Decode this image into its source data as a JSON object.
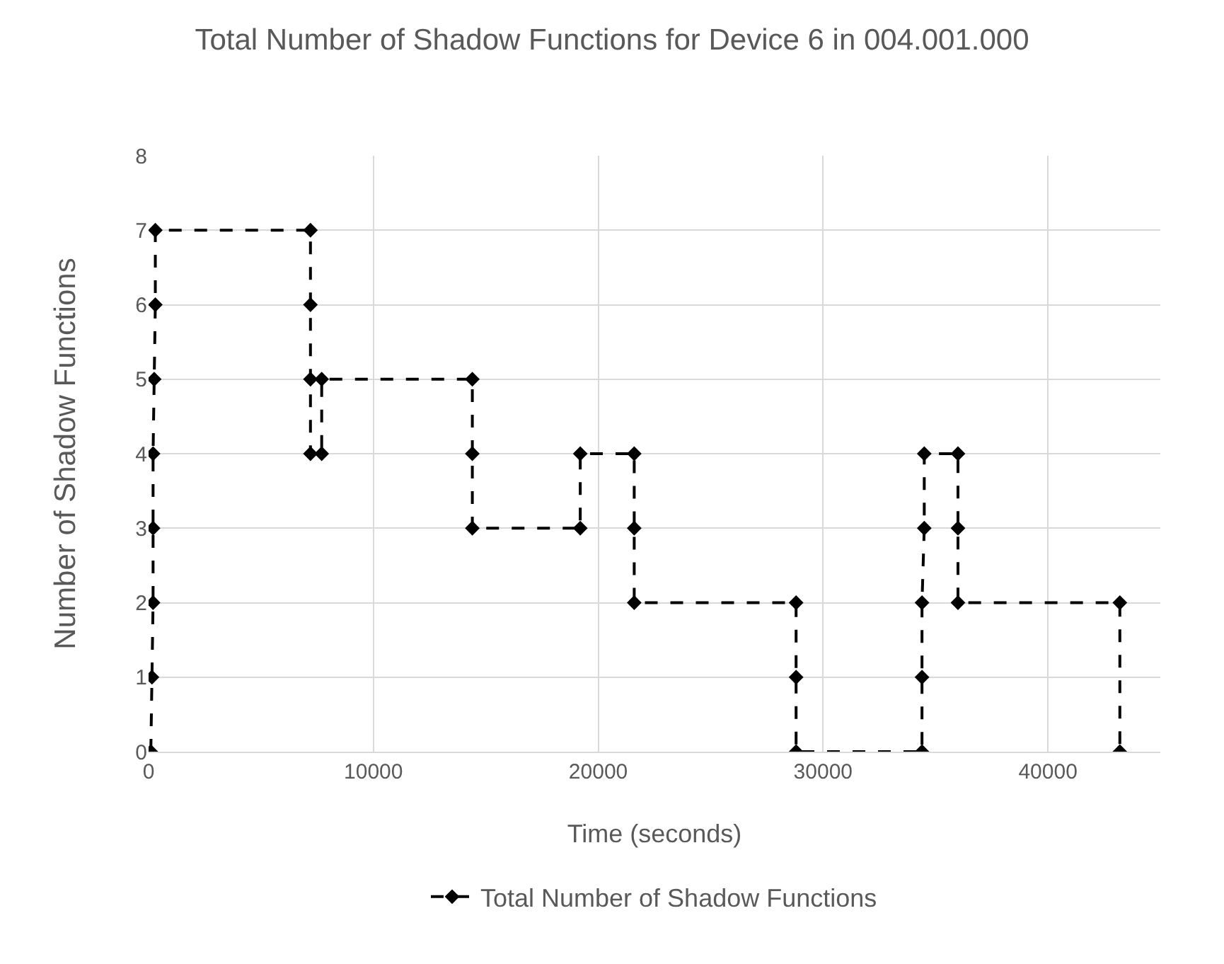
{
  "chart_data": {
    "type": "line",
    "title": "Total Number of Shadow Functions for Device 6 in 004.001.000",
    "xlabel": "Time (seconds)",
    "ylabel": "Number of Shadow Functions",
    "x": [
      100,
      150,
      200,
      200,
      200,
      250,
      300,
      300,
      7200,
      7200,
      7200,
      7200,
      7700,
      7700,
      14400,
      14400,
      14400,
      19200,
      19200,
      21600,
      21600,
      21600,
      28800,
      28800,
      28800,
      34400,
      34400,
      34400,
      34500,
      34500,
      36000,
      36000,
      36000,
      43200,
      43200
    ],
    "series": [
      {
        "name": "Total Number of Shadow Functions",
        "color": "#000000",
        "values": [
          0,
          1,
          2,
          3,
          4,
          5,
          6,
          7,
          7,
          6,
          5,
          4,
          4,
          5,
          5,
          4,
          3,
          3,
          4,
          4,
          3,
          2,
          2,
          1,
          0,
          0,
          1,
          2,
          3,
          4,
          4,
          3,
          2,
          2,
          0
        ]
      }
    ],
    "xlim": [
      0,
      45000
    ],
    "xticks": [
      0,
      10000,
      20000,
      30000,
      40000
    ],
    "ylim": [
      0,
      8
    ],
    "yticks": [
      0,
      1,
      2,
      3,
      4,
      5,
      6,
      7,
      8
    ],
    "grid": true,
    "legend": "bottom",
    "marker": "diamond",
    "line_style": "dashed"
  }
}
